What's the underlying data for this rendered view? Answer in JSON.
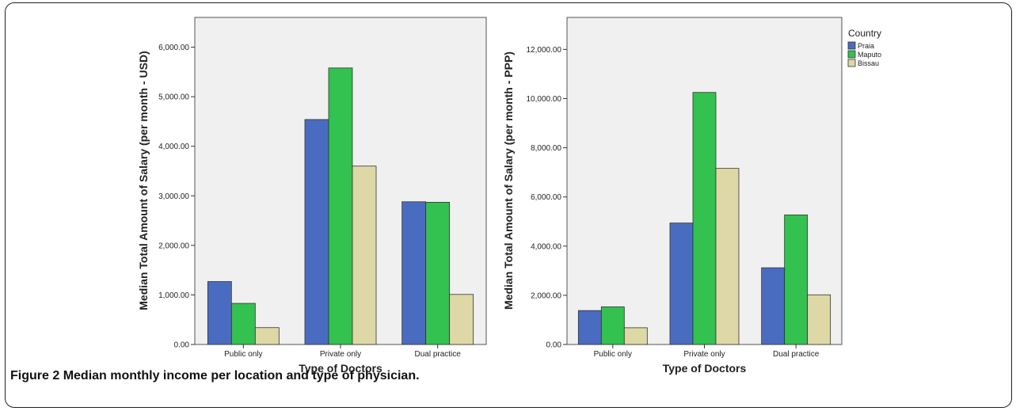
{
  "caption": {
    "label": "Figure 2",
    "text": "Median monthly income per location and type of physician."
  },
  "colors": {
    "Praia": "#4a6cc0",
    "Maputo": "#33c14f",
    "Bissau": "#ddd8a6",
    "plot_bg": "#f0f0f0"
  },
  "chart_data": [
    {
      "type": "bar",
      "categories": [
        "Public only",
        "Private only",
        "Dual practice"
      ],
      "series": [
        {
          "name": "Praia",
          "values": [
            1270,
            4540,
            2880
          ]
        },
        {
          "name": "Maputo",
          "values": [
            830,
            5580,
            2870
          ]
        },
        {
          "name": "Bissau",
          "values": [
            340,
            3600,
            1010
          ]
        }
      ],
      "xlabel": "Type of Doctors",
      "ylabel": "Median Total Amount of Salary (per month - USD)",
      "ylim": [
        0,
        6600
      ],
      "yticks": [
        0,
        1000,
        2000,
        3000,
        4000,
        5000,
        6000
      ],
      "ytick_labels": [
        "0.00",
        "1,000.00",
        "2,000.00",
        "3,000.00",
        "4,000.00",
        "5,000.00",
        "6,000.00"
      ],
      "legend": null
    },
    {
      "type": "bar",
      "categories": [
        "Public only",
        "Private only",
        "Dual practice"
      ],
      "series": [
        {
          "name": "Praia",
          "values": [
            1380,
            4940,
            3120
          ]
        },
        {
          "name": "Maputo",
          "values": [
            1530,
            10250,
            5270
          ]
        },
        {
          "name": "Bissau",
          "values": [
            680,
            7160,
            2020
          ]
        }
      ],
      "xlabel": "Type of Doctors",
      "ylabel": "Median Total Amount of Salary (per month - PPP)",
      "ylim": [
        0,
        13300
      ],
      "yticks": [
        0,
        2000,
        4000,
        6000,
        8000,
        10000,
        12000
      ],
      "ytick_labels": [
        "0.00",
        "2,000.00",
        "4,000.00",
        "6,000.00",
        "8,000.00",
        "10,000.00",
        "12,000.00"
      ],
      "legend": {
        "title": "Country",
        "placement": "right"
      }
    }
  ]
}
